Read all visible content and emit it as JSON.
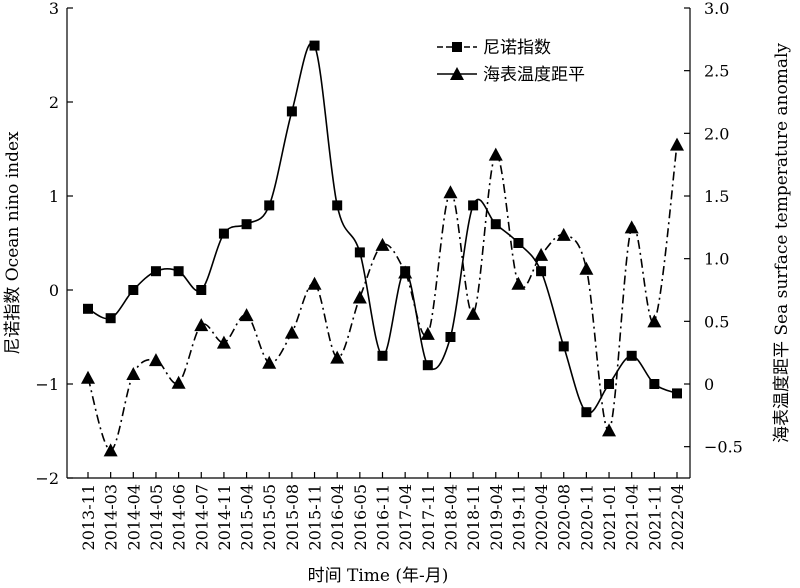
{
  "chart_data": {
    "type": "line",
    "xlabel": "时间 Time (年-月)",
    "ylabel_left": "尼诺指数 Ocean nino index",
    "ylabel_right": "海表温度距平 Sea surface temperature anomaly",
    "ylim_left": [
      -2,
      3
    ],
    "ylim_right": [
      -0.75,
      3.0
    ],
    "yticks_left": [
      "−2",
      "−1",
      "0",
      "1",
      "2",
      "3"
    ],
    "yticks_right": [
      "−0.5",
      "0",
      "0.5",
      "1.0",
      "1.5",
      "2.0",
      "2.5",
      "3.0"
    ],
    "categories": [
      "2013-11",
      "2014-03",
      "2014-04",
      "2014-05",
      "2014-06",
      "2014-07",
      "2014-11",
      "2015-04",
      "2015-05",
      "2015-08",
      "2015-11",
      "2016-04",
      "2016-05",
      "2016-11",
      "2017-04",
      "2017-11",
      "2018-04",
      "2018-11",
      "2019-04",
      "2019-11",
      "2020-04",
      "2020-08",
      "2020-11",
      "2021-01",
      "2021-04",
      "2021-11",
      "2022-04"
    ],
    "legend_position": "top-right",
    "series": [
      {
        "name": "尼诺指数",
        "axis": "left",
        "marker": "square",
        "line": "solid",
        "values": [
          -0.2,
          -0.3,
          0.0,
          0.2,
          0.2,
          0.0,
          0.6,
          0.7,
          0.9,
          1.9,
          2.6,
          0.9,
          0.4,
          -0.7,
          0.2,
          -0.8,
          -0.5,
          0.9,
          0.7,
          0.5,
          0.2,
          -0.6,
          -1.3,
          -1.0,
          -0.7,
          -1.0,
          -1.1
        ]
      },
      {
        "name": "海表温度距平",
        "axis": "right",
        "marker": "triangle",
        "line": "dashdot",
        "values": [
          0.05,
          -0.53,
          0.08,
          0.19,
          0.01,
          0.47,
          0.33,
          0.55,
          0.17,
          0.41,
          0.8,
          0.21,
          0.69,
          1.11,
          0.89,
          0.4,
          1.53,
          0.56,
          1.83,
          0.8,
          1.03,
          1.19,
          0.92,
          -0.37,
          1.25,
          0.5,
          1.91
        ]
      }
    ]
  }
}
